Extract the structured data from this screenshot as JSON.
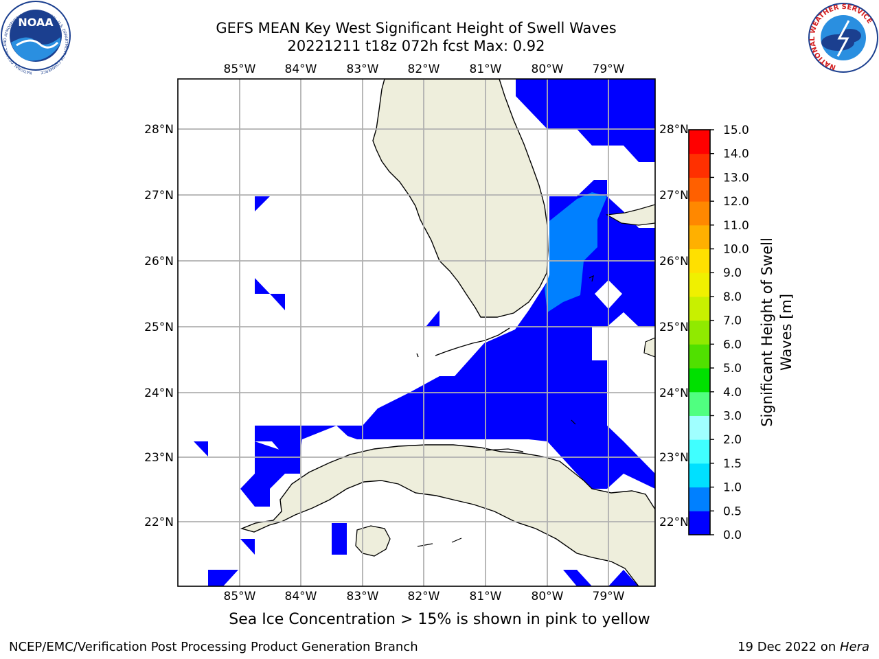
{
  "title": {
    "line1": "GEFS MEAN Key West Significant Height of Swell Waves",
    "line2": "20221211 t18z 072h fcst   Max: 0.92"
  },
  "axes": {
    "lon_labels": [
      "85°W",
      "84°W",
      "83°W",
      "82°W",
      "81°W",
      "80°W",
      "79°W"
    ],
    "lat_labels": [
      "28°N",
      "27°N",
      "26°N",
      "25°N",
      "24°N",
      "23°N",
      "22°N"
    ]
  },
  "colorbar": {
    "label_line1": "Significant Height of Swell",
    "label_line2": "Waves [m]",
    "ticks": [
      "0.0",
      "0.5",
      "1.0",
      "1.5",
      "2.0",
      "3.0",
      "4.0",
      "5.0",
      "6.0",
      "7.0",
      "8.0",
      "9.0",
      "10.0",
      "11.0",
      "12.0",
      "13.0",
      "14.0",
      "15.0"
    ],
    "colors": [
      "#0000ff",
      "#0080ff",
      "#00e0ff",
      "#40ffff",
      "#a0ffff",
      "#50ff80",
      "#00e000",
      "#50e000",
      "#90ea00",
      "#c8f000",
      "#f0f000",
      "#ffe000",
      "#ffb000",
      "#ff8800",
      "#ff6000",
      "#ff3000",
      "#ff0000"
    ]
  },
  "map_colors": {
    "land": "#eeeedc",
    "swell_low": "#0000ff",
    "swell_mid": "#0080ff",
    "grid": "#b0b0b0"
  },
  "ice_note": "Sea Ice Concentration > 15% is shown in pink to yellow",
  "footer": {
    "left": "NCEP/EMC/Verification Post Processing Product Generation Branch",
    "date": "19 Dec 2022 on ",
    "host": "Hera"
  },
  "logos": {
    "noaa_text": "NOAA",
    "noaa_ring": "NATIONAL OCEANIC AND ATMOSPHERIC ADMINISTRATION · U.S. DEPARTMENT OF COMMERCE",
    "nws_ring": "NATIONAL WEATHER SERVICE"
  }
}
